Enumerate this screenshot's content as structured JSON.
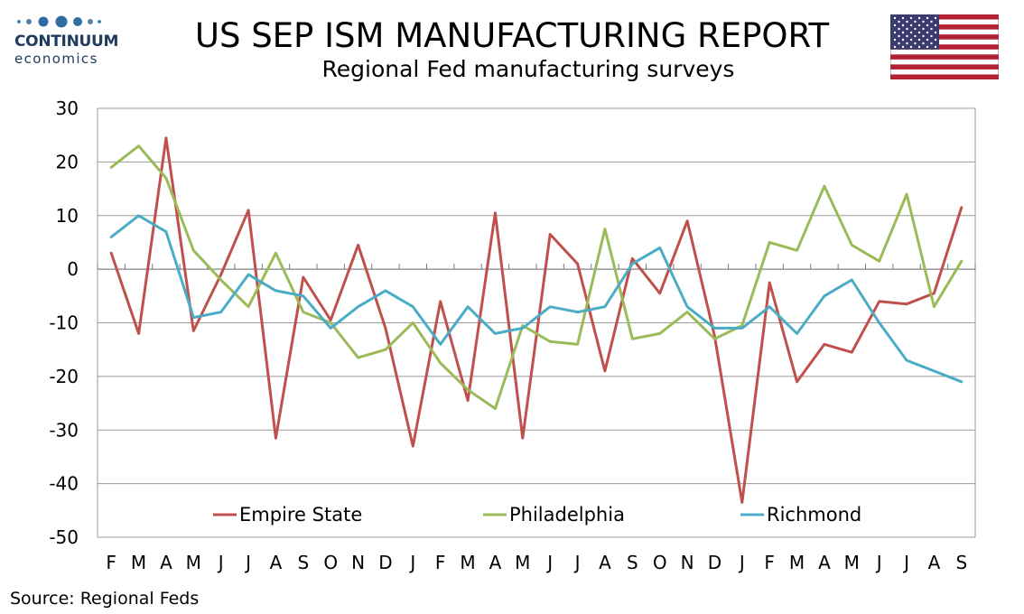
{
  "logo": {
    "wordmark": "CONTINUUM",
    "sub": "economics"
  },
  "title": "US SEP ISM MANUFACTURING REPORT",
  "subtitle": "Regional Fed manufacturing surveys",
  "flag_icon": "us-flag-icon",
  "source": "Source: Regional Feds",
  "colors": {
    "empire": "#c0504d",
    "philadelphia": "#9bbb59",
    "richmond": "#4bacc6",
    "grid": "#999999"
  },
  "chart_data": {
    "type": "line",
    "categories": [
      "F",
      "M",
      "A",
      "M",
      "J",
      "J",
      "A",
      "S",
      "O",
      "N",
      "D",
      "J",
      "F",
      "M",
      "A",
      "M",
      "J",
      "J",
      "A",
      "S",
      "O",
      "N",
      "D",
      "J",
      "F",
      "M",
      "A",
      "M",
      "J",
      "J",
      "A",
      "S"
    ],
    "ylim": [
      -50,
      30
    ],
    "yticks": [
      30,
      20,
      10,
      0,
      -10,
      -20,
      -30,
      -40,
      -50
    ],
    "grid": "horizontal",
    "legend_position": "bottom",
    "series": [
      {
        "name": "Empire State",
        "color": "#c0504d",
        "values": [
          3,
          -12,
          24.5,
          -11.5,
          -1,
          11,
          -31.5,
          -1.5,
          -9.5,
          4.5,
          -11,
          -33,
          -6,
          -24.5,
          10.5,
          -31.5,
          6.5,
          1,
          -19,
          2,
          -4.5,
          9,
          -12.5,
          -43.5,
          -2.5,
          -21,
          -14,
          -15.5,
          -6,
          -6.5,
          -4.5,
          11.5
        ]
      },
      {
        "name": "Philadelphia",
        "color": "#9bbb59",
        "values": [
          19,
          23,
          17,
          3.5,
          -2,
          -7,
          3,
          -8,
          -10,
          -16.5,
          -15,
          -10,
          -17.5,
          -22.5,
          -26,
          -10.5,
          -13.5,
          -14,
          7.5,
          -13,
          -12,
          -8,
          -13,
          -10.5,
          5,
          3.5,
          15.5,
          4.5,
          1.5,
          14,
          -7,
          1.5
        ]
      },
      {
        "name": "Richmond",
        "color": "#4bacc6",
        "values": [
          6,
          10,
          7,
          -9,
          -8,
          -1,
          -4,
          -5,
          -11,
          -7,
          -4,
          -7,
          -14,
          -7,
          -12,
          -11,
          -7,
          -8,
          -7,
          1,
          4,
          -7,
          -11,
          -11,
          -7,
          -12,
          -5,
          -2,
          -10,
          -17,
          -19,
          -21
        ]
      }
    ]
  }
}
